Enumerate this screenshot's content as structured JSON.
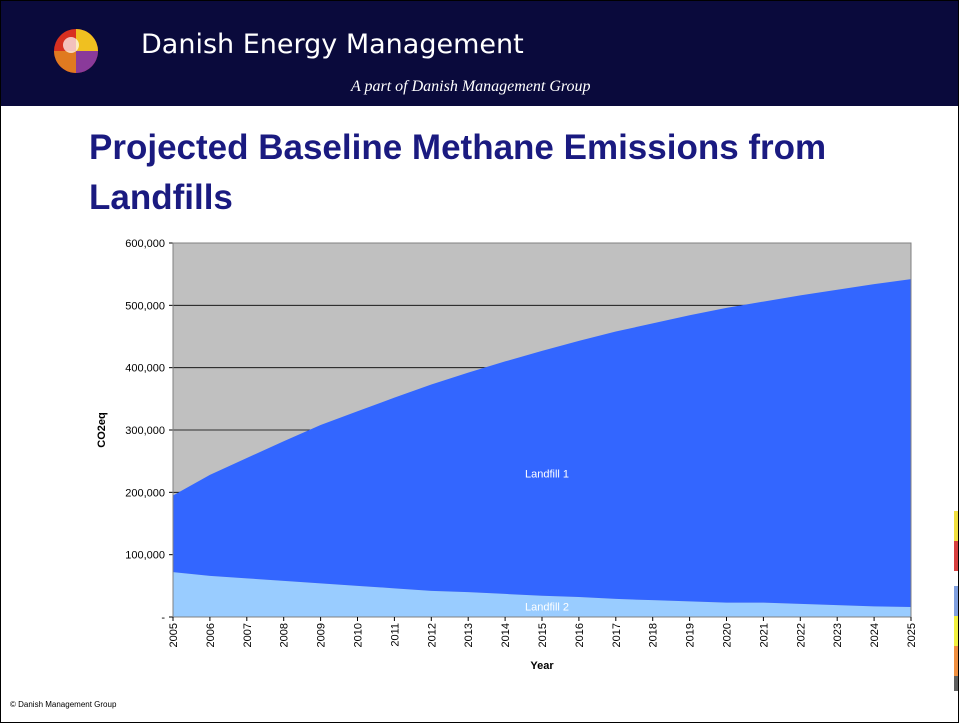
{
  "header": {
    "title": "Danish Energy Management",
    "subtitle": "A part of Danish Management Group"
  },
  "footer": "© Danish Management Group",
  "chart_data": {
    "type": "stacked_area",
    "title": "Projected Baseline Methane Emissions from Landfills",
    "x_label": "Year",
    "y_label": "CO2eq",
    "categories": [
      "2005",
      "2006",
      "2007",
      "2008",
      "2009",
      "2010",
      "2011",
      "2012",
      "2013",
      "2014",
      "2015",
      "2016",
      "2017",
      "2018",
      "2019",
      "2020",
      "2021",
      "2022",
      "2023",
      "2024",
      "2025"
    ],
    "series": [
      {
        "name": "Landfill 2",
        "color": "#99ccff",
        "values": [
          72000,
          66000,
          62000,
          58000,
          54000,
          50000,
          46000,
          42000,
          40000,
          37000,
          34000,
          32000,
          29000,
          27000,
          25000,
          23000,
          23000,
          21000,
          19000,
          17000,
          16000
        ]
      },
      {
        "name": "Landfill 1",
        "color": "#3366ff",
        "values": [
          123000,
          162000,
          193000,
          224000,
          254000,
          280000,
          306000,
          331000,
          352000,
          373000,
          393000,
          411000,
          429000,
          444000,
          459000,
          473000,
          483000,
          495000,
          506000,
          517000,
          526000
        ]
      }
    ],
    "ylim": [
      0,
      600000
    ],
    "yticks": [
      {
        "value": 0,
        "label": "-"
      },
      {
        "value": 100000,
        "label": "100,000"
      },
      {
        "value": 200000,
        "label": "200,000"
      },
      {
        "value": 300000,
        "label": "300,000"
      },
      {
        "value": 400000,
        "label": "400,000"
      },
      {
        "value": 500000,
        "label": "500,000"
      },
      {
        "value": 600000,
        "label": "600,000"
      }
    ],
    "grid": true,
    "background": "#c0c0c0"
  }
}
